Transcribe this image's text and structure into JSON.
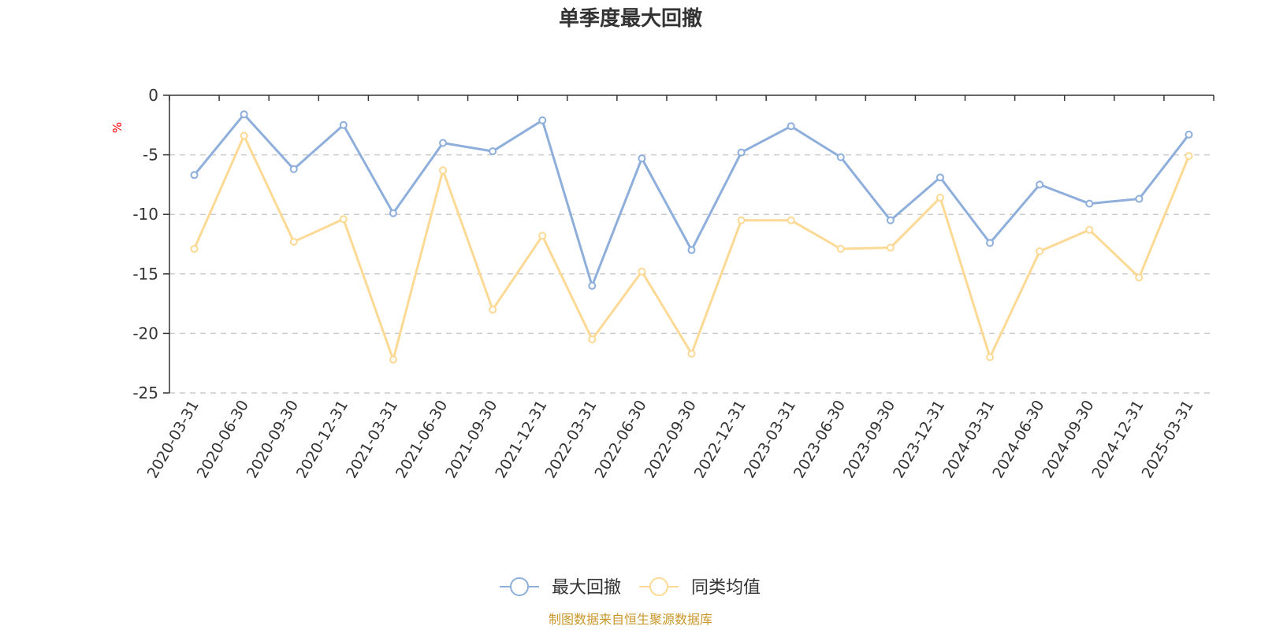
{
  "chart_data": {
    "type": "line",
    "title": "单季度最大回撤",
    "ylabel": "%",
    "ylim": [
      -25,
      0
    ],
    "yticks": [
      0,
      -5,
      -10,
      -15,
      -20,
      -25
    ],
    "grid": true,
    "legend_position": "bottom",
    "categories": [
      "2020-03-31",
      "2020-06-30",
      "2020-09-30",
      "2020-12-31",
      "2021-03-31",
      "2021-06-30",
      "2021-09-30",
      "2021-12-31",
      "2022-03-31",
      "2022-06-30",
      "2022-09-30",
      "2022-12-31",
      "2023-03-31",
      "2023-06-30",
      "2023-09-30",
      "2023-12-31",
      "2024-03-31",
      "2024-06-30",
      "2024-09-30",
      "2024-12-31",
      "2025-03-31"
    ],
    "series": [
      {
        "name": "最大回撤",
        "color": "#8eaedb",
        "values": [
          -6.7,
          -1.6,
          -6.2,
          -2.5,
          -9.9,
          -4.0,
          -4.7,
          -2.1,
          -16.0,
          -5.3,
          -13.0,
          -4.8,
          -2.6,
          -5.2,
          -10.5,
          -6.9,
          -12.4,
          -7.5,
          -9.1,
          -8.7,
          -3.3
        ]
      },
      {
        "name": "同类均值",
        "color": "#fcd994",
        "values": [
          -12.9,
          -3.4,
          -12.3,
          -10.4,
          -22.2,
          -6.3,
          -18.0,
          -11.8,
          -20.5,
          -14.8,
          -21.7,
          -10.5,
          -10.5,
          -12.9,
          -12.8,
          -8.6,
          -22.0,
          -13.1,
          -11.3,
          -15.3,
          -5.1
        ]
      }
    ]
  },
  "source_text": "制图数据来自恒生聚源数据库"
}
